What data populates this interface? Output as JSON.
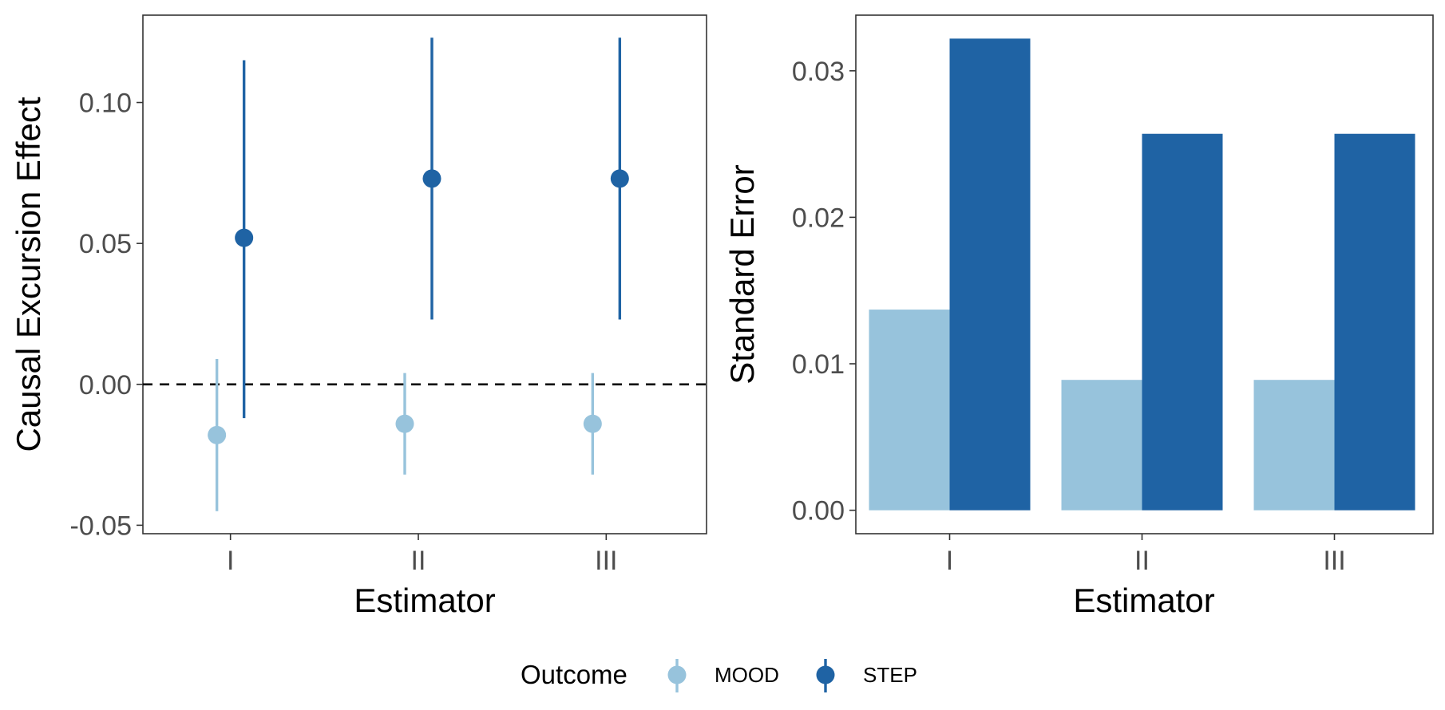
{
  "chart_data": [
    {
      "type": "scatter",
      "categories": [
        "I",
        "II",
        "III"
      ],
      "xlabel": "Estimator",
      "ylabel": "Causal Excursion Effect",
      "ylim": [
        -0.053,
        0.131
      ],
      "yticks": [
        "-0.05",
        "0.00",
        "0.05",
        "0.10"
      ],
      "reference_line": 0,
      "grid": false,
      "series": [
        {
          "name": "MOOD",
          "color": "#97c3dc",
          "estimate": [
            -0.018,
            -0.014,
            -0.014
          ],
          "lower": [
            -0.045,
            -0.032,
            -0.032
          ],
          "upper": [
            0.009,
            0.004,
            0.004
          ]
        },
        {
          "name": "STEP",
          "color": "#1f63a4",
          "estimate": [
            0.052,
            0.073,
            0.073
          ],
          "lower": [
            -0.012,
            0.023,
            0.023
          ],
          "upper": [
            0.115,
            0.123,
            0.123
          ]
        }
      ]
    },
    {
      "type": "bar",
      "categories": [
        "I",
        "II",
        "III"
      ],
      "xlabel": "Estimator",
      "ylabel": "Standard Error",
      "ylim": [
        -0.0016,
        0.0338
      ],
      "yticks": [
        "0.00",
        "0.01",
        "0.02",
        "0.03"
      ],
      "grid": false,
      "series": [
        {
          "name": "MOOD",
          "color": "#97c3dc",
          "values": [
            0.0137,
            0.0089,
            0.0089
          ]
        },
        {
          "name": "STEP",
          "color": "#1f63a4",
          "values": [
            0.0322,
            0.0257,
            0.0257
          ]
        }
      ]
    }
  ],
  "legend": {
    "title": "Outcome",
    "position": "bottom",
    "items": [
      "MOOD",
      "STEP"
    ]
  }
}
